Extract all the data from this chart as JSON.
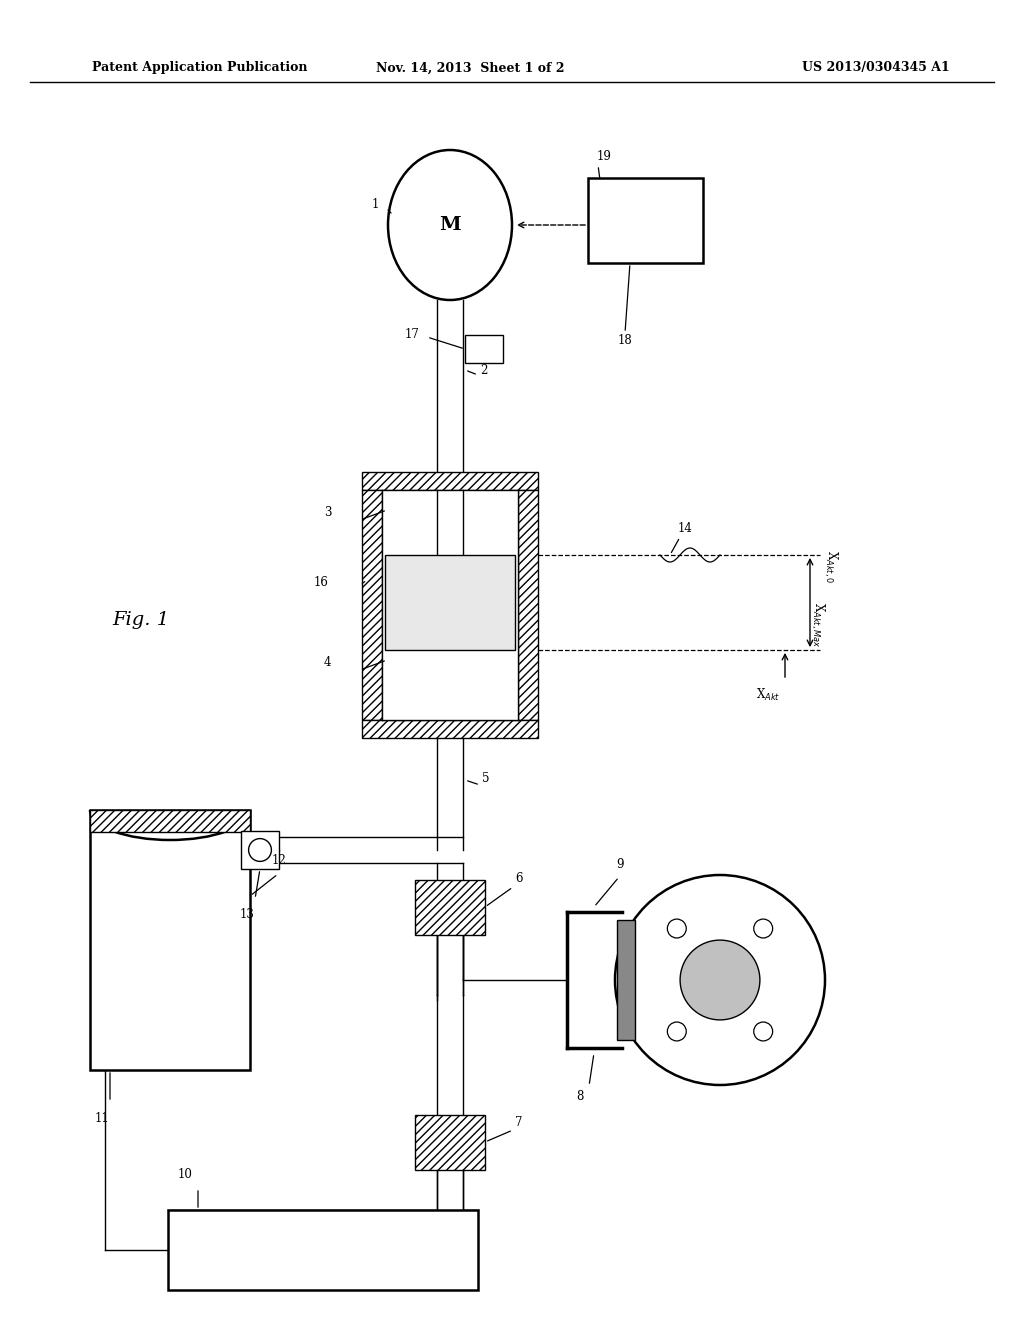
{
  "bg_color": "#ffffff",
  "header_left": "Patent Application Publication",
  "header_center": "Nov. 14, 2013  Sheet 1 of 2",
  "header_right": "US 2013/0304345 A1"
}
